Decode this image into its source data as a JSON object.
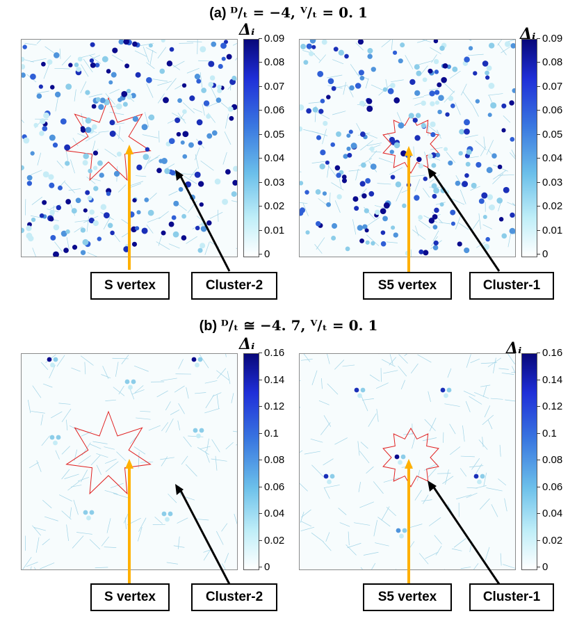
{
  "figure": {
    "title_a_prefix": "(a) ",
    "title_a_expr": "ᴰ/ₜ = −4, ⱽ/ₜ = 0. 1",
    "title_b_prefix": "(b) ",
    "title_b_expr": "ᴰ/ₜ ≅ −4. 7, ⱽ/ₜ = 0. 1",
    "colorbar_symbol": "Δᵢ",
    "colorbar_a_ticks": [
      "0.09",
      "0.08",
      "0.07",
      "0.06",
      "0.05",
      "0.04",
      "0.03",
      "0.02",
      "0.01",
      "0"
    ],
    "colorbar_b_ticks": [
      "0.16",
      "0.14",
      "0.12",
      "0.1",
      "0.08",
      "0.06",
      "0.04",
      "0.02",
      "0"
    ],
    "labels": {
      "s_vertex": "S vertex",
      "s5_vertex": "S5 vertex",
      "cluster_2": "Cluster-2",
      "cluster_1": "Cluster-1"
    },
    "colors": {
      "arrow_vertex": "#ffb000",
      "arrow_cluster": "#000000",
      "cluster_outline": "#e02020",
      "tiling_lines": "#9fd3e6"
    }
  }
}
